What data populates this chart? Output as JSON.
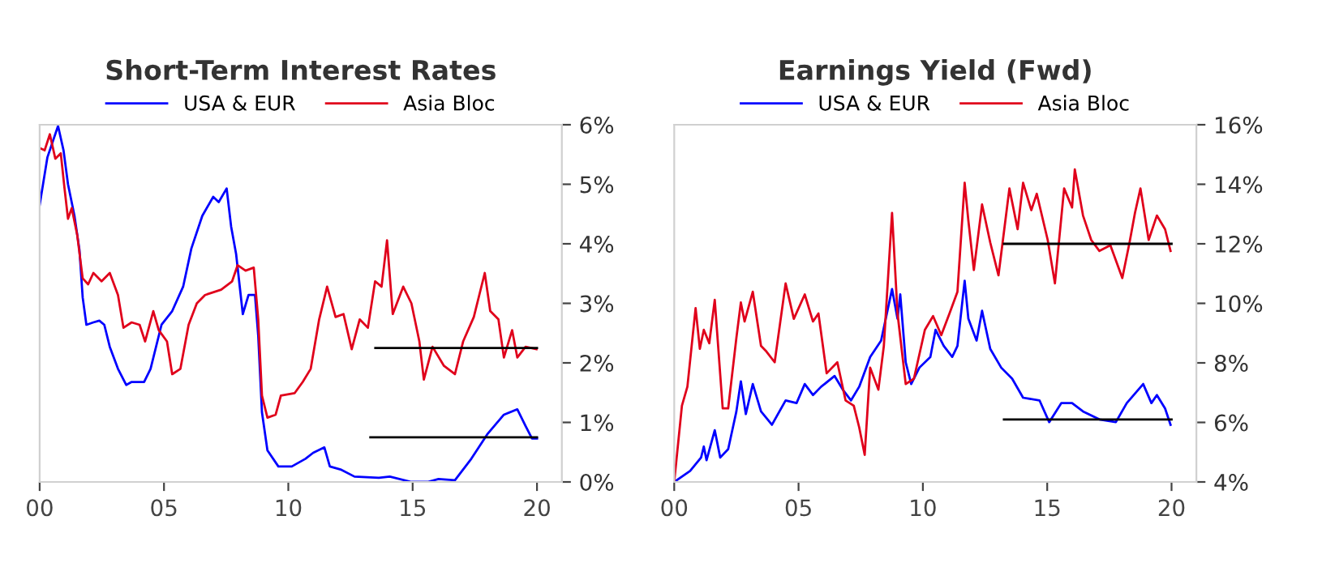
{
  "chart_data": [
    {
      "type": "line",
      "title": "Short-Term Interest Rates",
      "legend": "top",
      "grid": false,
      "xlim": [
        0,
        21
      ],
      "xticks": [
        {
          "value": 0,
          "label": "00"
        },
        {
          "value": 5,
          "label": "05"
        },
        {
          "value": 10,
          "label": "10"
        },
        {
          "value": 15,
          "label": "15"
        },
        {
          "value": 20,
          "label": "20"
        }
      ],
      "ylim": [
        0,
        6
      ],
      "yticks": [
        {
          "value": 0,
          "label": "0%"
        },
        {
          "value": 1,
          "label": "1%"
        },
        {
          "value": 2,
          "label": "2%"
        },
        {
          "value": 3,
          "label": "3%"
        },
        {
          "value": 4,
          "label": "4%"
        },
        {
          "value": 5,
          "label": "5%"
        },
        {
          "value": 6,
          "label": "6%"
        }
      ],
      "series": [
        {
          "name": "USA & EUR",
          "color": "#0000ff",
          "x": [
            0,
            0.31,
            0.74,
            0.96,
            1.14,
            1.4,
            1.6,
            1.73,
            1.88,
            2.16,
            2.4,
            2.6,
            2.82,
            3.15,
            3.48,
            3.7,
            4.2,
            4.46,
            4.9,
            5.33,
            5.77,
            6.1,
            6.54,
            6.98,
            7.2,
            7.52,
            7.7,
            7.9,
            8.17,
            8.4,
            8.66,
            8.79,
            8.94,
            9.16,
            9.6,
            10.14,
            10.69,
            11.0,
            11.45,
            11.67,
            12.1,
            12.66,
            13.64,
            14.08,
            14.95,
            15.6,
            16.04,
            16.7,
            17.36,
            18.0,
            18.67,
            19.21,
            19.54,
            19.8,
            20.0
          ],
          "values": [
            4.65,
            5.45,
            5.98,
            5.57,
            5.0,
            4.47,
            3.9,
            3.1,
            2.64,
            2.68,
            2.71,
            2.64,
            2.27,
            1.9,
            1.63,
            1.68,
            1.68,
            1.9,
            2.64,
            2.87,
            3.28,
            3.92,
            4.47,
            4.79,
            4.7,
            4.93,
            4.29,
            3.83,
            2.82,
            3.14,
            3.14,
            2.45,
            1.17,
            0.53,
            0.26,
            0.26,
            0.39,
            0.49,
            0.58,
            0.26,
            0.21,
            0.09,
            0.07,
            0.09,
            0,
            0,
            0.05,
            0.03,
            0.39,
            0.8,
            1.13,
            1.22,
            0.94,
            0.73,
            0.73
          ]
        },
        {
          "name": "Asia Bloc",
          "color": "#e0001b",
          "x": [
            0,
            0.2,
            0.41,
            0.63,
            0.85,
            1.0,
            1.14,
            1.29,
            1.51,
            1.73,
            1.95,
            2.16,
            2.49,
            2.82,
            3.15,
            3.37,
            3.7,
            4.02,
            4.24,
            4.57,
            4.79,
            5.12,
            5.33,
            5.66,
            5.99,
            6.32,
            6.65,
            7.3,
            7.74,
            7.96,
            8.28,
            8.61,
            8.79,
            8.94,
            9.16,
            9.49,
            9.7,
            10.25,
            10.58,
            10.9,
            11.24,
            11.56,
            11.9,
            12.22,
            12.55,
            12.87,
            13.2,
            13.49,
            13.75,
            13.97,
            14.2,
            14.62,
            14.95,
            15.27,
            15.45,
            15.8,
            16.26,
            16.7,
            17.03,
            17.46,
            17.9,
            18.12,
            18.45,
            18.67,
            19.0,
            19.21,
            19.54,
            19.98
          ],
          "values": [
            5.61,
            5.57,
            5.84,
            5.43,
            5.52,
            4.93,
            4.42,
            4.6,
            4.15,
            3.42,
            3.32,
            3.51,
            3.37,
            3.51,
            3.14,
            2.59,
            2.68,
            2.64,
            2.36,
            2.87,
            2.55,
            2.36,
            1.81,
            1.9,
            2.64,
            3.0,
            3.14,
            3.23,
            3.37,
            3.64,
            3.55,
            3.6,
            2.73,
            1.45,
            1.08,
            1.13,
            1.45,
            1.49,
            1.68,
            1.9,
            2.73,
            3.28,
            2.77,
            2.82,
            2.23,
            2.73,
            2.59,
            3.37,
            3.28,
            4.06,
            2.82,
            3.28,
            3.0,
            2.36,
            1.72,
            2.27,
            1.95,
            1.81,
            2.36,
            2.77,
            3.51,
            2.87,
            2.73,
            2.09,
            2.55,
            2.09,
            2.27,
            2.23
          ]
        },
        {
          "type": "line",
          "color": "#000000",
          "x": [
            13.5,
            20
          ],
          "values": [
            2.25,
            2.25
          ]
        },
        {
          "type": "line",
          "color": "#000000",
          "x": [
            13.3,
            20
          ],
          "values": [
            0.75,
            0.75
          ]
        }
      ]
    },
    {
      "type": "line",
      "title": "Earnings Yield (Fwd)",
      "legend": "top",
      "grid": false,
      "xlim": [
        0,
        21
      ],
      "xticks": [
        {
          "value": 0,
          "label": "00"
        },
        {
          "value": 5,
          "label": "05"
        },
        {
          "value": 10,
          "label": "10"
        },
        {
          "value": 15,
          "label": "15"
        },
        {
          "value": 20,
          "label": "20"
        }
      ],
      "ylim": [
        4,
        16
      ],
      "yticks": [
        {
          "value": 4,
          "label": "4%"
        },
        {
          "value": 6,
          "label": "6%"
        },
        {
          "value": 8,
          "label": "8%"
        },
        {
          "value": 10,
          "label": "10%"
        },
        {
          "value": 12,
          "label": "12%"
        },
        {
          "value": 14,
          "label": "14%"
        },
        {
          "value": 16,
          "label": "16%"
        }
      ],
      "series": [
        {
          "name": "USA & EUR",
          "color": "#0000ff",
          "x": [
            0,
            0.64,
            1.08,
            1.19,
            1.3,
            1.63,
            1.85,
            2.17,
            2.5,
            2.68,
            2.88,
            3.16,
            3.49,
            3.93,
            4.48,
            4.92,
            5.25,
            5.58,
            5.91,
            6.45,
            6.78,
            7.11,
            7.44,
            7.88,
            8.32,
            8.76,
            8.98,
            9.09,
            9.31,
            9.53,
            9.86,
            10.3,
            10.51,
            10.84,
            11.18,
            11.39,
            11.68,
            11.83,
            12.16,
            12.38,
            12.71,
            13.15,
            13.59,
            14.03,
            14.69,
            15.08,
            15.57,
            16.0,
            16.44,
            17.1,
            17.76,
            18.2,
            18.86,
            19.19,
            19.41,
            19.74,
            19.96
          ],
          "values": [
            4.0,
            4.37,
            4.82,
            5.19,
            4.73,
            5.74,
            4.82,
            5.1,
            6.37,
            7.38,
            6.28,
            7.29,
            6.37,
            5.92,
            6.74,
            6.65,
            7.29,
            6.92,
            7.2,
            7.56,
            7.1,
            6.74,
            7.2,
            8.2,
            8.75,
            10.48,
            9.48,
            10.3,
            8.02,
            7.29,
            7.84,
            8.2,
            9.11,
            8.57,
            8.2,
            8.57,
            10.76,
            9.48,
            8.75,
            9.75,
            8.47,
            7.84,
            7.47,
            6.83,
            6.74,
            6.01,
            6.65,
            6.65,
            6.37,
            6.1,
            6.01,
            6.65,
            7.29,
            6.65,
            6.92,
            6.47,
            5.92
          ]
        },
        {
          "name": "Asia Bloc",
          "color": "#e0001b",
          "x": [
            0,
            0.31,
            0.53,
            0.86,
            1.03,
            1.19,
            1.41,
            1.63,
            1.95,
            2.17,
            2.5,
            2.68,
            2.83,
            3.16,
            3.49,
            3.71,
            4.04,
            4.48,
            4.81,
            5.25,
            5.58,
            5.8,
            6.13,
            6.56,
            6.89,
            7.22,
            7.44,
            7.66,
            7.88,
            8.21,
            8.43,
            8.76,
            8.98,
            9.31,
            9.64,
            10.08,
            10.41,
            10.74,
            11.07,
            11.39,
            11.68,
            11.83,
            12.05,
            12.38,
            12.71,
            13.04,
            13.48,
            13.81,
            14.03,
            14.36,
            14.58,
            15.02,
            15.31,
            15.68,
            16.0,
            16.11,
            16.44,
            16.77,
            17.1,
            17.54,
            18.02,
            18.31,
            18.53,
            18.75,
            19.08,
            19.41,
            19.74,
            19.96
          ],
          "values": [
            4.0,
            6.56,
            7.2,
            9.84,
            8.47,
            9.11,
            8.66,
            10.12,
            6.47,
            6.47,
            8.84,
            10.03,
            9.39,
            10.39,
            8.57,
            8.38,
            8.02,
            10.67,
            9.48,
            10.3,
            9.39,
            9.66,
            7.65,
            8.02,
            6.74,
            6.56,
            5.83,
            4.91,
            7.84,
            7.1,
            8.57,
            13.04,
            9.66,
            7.29,
            7.47,
            9.11,
            9.57,
            8.93,
            9.66,
            10.39,
            14.05,
            12.77,
            11.12,
            13.32,
            12.04,
            10.94,
            13.86,
            12.49,
            14.05,
            13.13,
            13.68,
            12.13,
            10.67,
            13.86,
            13.22,
            14.5,
            12.95,
            12.13,
            11.76,
            11.95,
            10.85,
            12.04,
            13.04,
            13.86,
            12.13,
            12.95,
            12.49,
            11.76
          ]
        },
        {
          "type": "line",
          "color": "#000000",
          "x": [
            13.26,
            20
          ],
          "values": [
            12.0,
            12.0
          ]
        },
        {
          "type": "line",
          "color": "#000000",
          "x": [
            13.26,
            20
          ],
          "values": [
            6.1,
            6.1
          ]
        }
      ]
    }
  ]
}
